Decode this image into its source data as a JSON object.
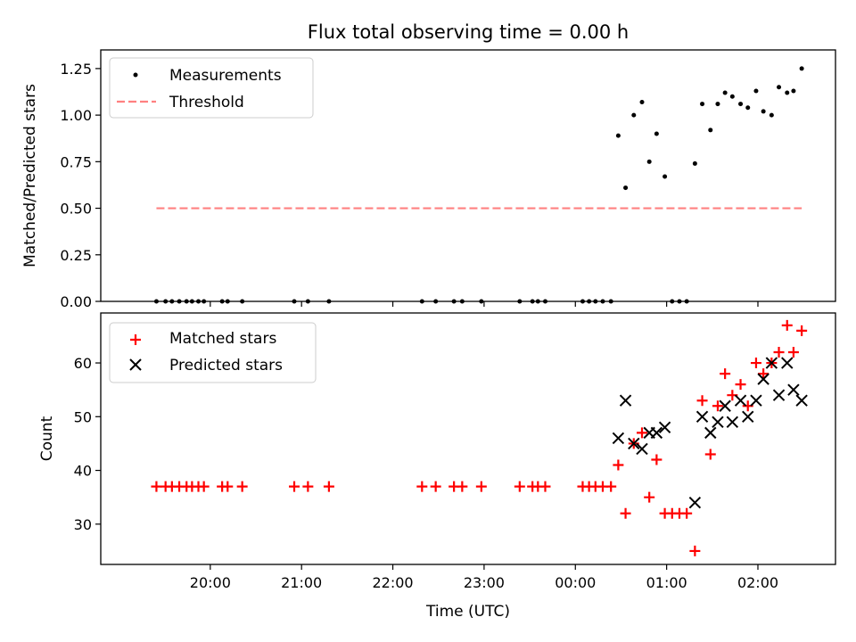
{
  "title": "Flux total observing time = 0.00 h",
  "x_axis": {
    "label": "Time (UTC)",
    "ticks": [
      "20:00",
      "21:00",
      "22:00",
      "23:00",
      "00:00",
      "01:00",
      "02:00"
    ],
    "tick_hours": [
      20,
      21,
      22,
      23,
      24,
      25,
      26
    ],
    "range_hours": [
      18.8,
      26.85
    ]
  },
  "colors": {
    "measurements": "#000000",
    "threshold": "#ff8080",
    "matched": "#ff0000",
    "predicted": "#000000"
  },
  "chart_data": [
    {
      "type": "scatter",
      "panel": "top",
      "ylabel": "Matched/Predicted stars",
      "ylim": [
        0.0,
        1.35
      ],
      "yticks": [
        "0.00",
        "0.25",
        "0.50",
        "0.75",
        "1.00",
        "1.25"
      ],
      "legend_position": "upper left",
      "series": [
        {
          "name": "Measurements",
          "marker": "dot",
          "points": [
            [
              19.41,
              0
            ],
            [
              19.51,
              0
            ],
            [
              19.58,
              0
            ],
            [
              19.66,
              0
            ],
            [
              19.74,
              0
            ],
            [
              19.8,
              0
            ],
            [
              19.87,
              0
            ],
            [
              19.93,
              0
            ],
            [
              20.13,
              0
            ],
            [
              20.19,
              0
            ],
            [
              20.35,
              0
            ],
            [
              20.92,
              0
            ],
            [
              21.07,
              0
            ],
            [
              21.3,
              0
            ],
            [
              22.32,
              0
            ],
            [
              22.47,
              0
            ],
            [
              22.67,
              0
            ],
            [
              22.76,
              0
            ],
            [
              22.97,
              0
            ],
            [
              23.39,
              0
            ],
            [
              23.53,
              0
            ],
            [
              23.59,
              0
            ],
            [
              23.67,
              0
            ],
            [
              24.08,
              0
            ],
            [
              24.15,
              0
            ],
            [
              24.22,
              0
            ],
            [
              24.3,
              0
            ],
            [
              24.39,
              0
            ],
            [
              24.47,
              0.89
            ],
            [
              24.55,
              0.61
            ],
            [
              24.64,
              1.0
            ],
            [
              24.73,
              1.07
            ],
            [
              24.81,
              0.75
            ],
            [
              24.89,
              0.9
            ],
            [
              24.98,
              0.67
            ],
            [
              25.06,
              0
            ],
            [
              25.14,
              0
            ],
            [
              25.22,
              0
            ],
            [
              25.31,
              0.74
            ],
            [
              25.39,
              1.06
            ],
            [
              25.48,
              0.92
            ],
            [
              25.56,
              1.06
            ],
            [
              25.64,
              1.12
            ],
            [
              25.72,
              1.1
            ],
            [
              25.81,
              1.06
            ],
            [
              25.89,
              1.04
            ],
            [
              25.98,
              1.13
            ],
            [
              26.06,
              1.02
            ],
            [
              26.15,
              1.0
            ],
            [
              26.23,
              1.15
            ],
            [
              26.32,
              1.12
            ],
            [
              26.39,
              1.13
            ],
            [
              26.48,
              1.25
            ]
          ]
        },
        {
          "name": "Threshold",
          "style": "dashed",
          "points": [
            [
              19.41,
              0.5
            ],
            [
              26.48,
              0.5
            ]
          ]
        }
      ]
    },
    {
      "type": "scatter",
      "panel": "bottom",
      "ylabel": "Count",
      "ylim": [
        22.5,
        69.3
      ],
      "yticks": [
        "30",
        "40",
        "50",
        "60"
      ],
      "legend_position": "upper left",
      "series": [
        {
          "name": "Matched stars",
          "marker": "plus",
          "points": [
            [
              19.41,
              37
            ],
            [
              19.51,
              37
            ],
            [
              19.58,
              37
            ],
            [
              19.66,
              37
            ],
            [
              19.74,
              37
            ],
            [
              19.8,
              37
            ],
            [
              19.87,
              37
            ],
            [
              19.93,
              37
            ],
            [
              20.13,
              37
            ],
            [
              20.19,
              37
            ],
            [
              20.35,
              37
            ],
            [
              20.92,
              37
            ],
            [
              21.07,
              37
            ],
            [
              21.3,
              37
            ],
            [
              22.32,
              37
            ],
            [
              22.47,
              37
            ],
            [
              22.67,
              37
            ],
            [
              22.76,
              37
            ],
            [
              22.97,
              37
            ],
            [
              23.39,
              37
            ],
            [
              23.53,
              37
            ],
            [
              23.59,
              37
            ],
            [
              23.67,
              37
            ],
            [
              24.08,
              37
            ],
            [
              24.15,
              37
            ],
            [
              24.22,
              37
            ],
            [
              24.3,
              37
            ],
            [
              24.39,
              37
            ],
            [
              24.47,
              41
            ],
            [
              24.55,
              32
            ],
            [
              24.64,
              45
            ],
            [
              24.73,
              47
            ],
            [
              24.81,
              35
            ],
            [
              24.89,
              42
            ],
            [
              24.98,
              32
            ],
            [
              25.06,
              32
            ],
            [
              25.14,
              32
            ],
            [
              25.22,
              32
            ],
            [
              25.31,
              25
            ],
            [
              25.39,
              53
            ],
            [
              25.48,
              43
            ],
            [
              25.56,
              52
            ],
            [
              25.64,
              58
            ],
            [
              25.72,
              54
            ],
            [
              25.81,
              56
            ],
            [
              25.89,
              52
            ],
            [
              25.98,
              60
            ],
            [
              26.06,
              58
            ],
            [
              26.15,
              60
            ],
            [
              26.23,
              62
            ],
            [
              26.32,
              67
            ],
            [
              26.39,
              62
            ],
            [
              26.48,
              66
            ]
          ]
        },
        {
          "name": "Predicted stars",
          "marker": "x",
          "points": [
            [
              24.47,
              46
            ],
            [
              24.55,
              53
            ],
            [
              24.64,
              45
            ],
            [
              24.73,
              44
            ],
            [
              24.81,
              47
            ],
            [
              24.89,
              47
            ],
            [
              24.98,
              48
            ],
            [
              25.31,
              34
            ],
            [
              25.39,
              50
            ],
            [
              25.48,
              47
            ],
            [
              25.56,
              49
            ],
            [
              25.64,
              52
            ],
            [
              25.72,
              49
            ],
            [
              25.81,
              53
            ],
            [
              25.89,
              50
            ],
            [
              25.98,
              53
            ],
            [
              26.06,
              57
            ],
            [
              26.15,
              60
            ],
            [
              26.23,
              54
            ],
            [
              26.32,
              60
            ],
            [
              26.39,
              55
            ],
            [
              26.48,
              53
            ]
          ]
        }
      ]
    }
  ]
}
